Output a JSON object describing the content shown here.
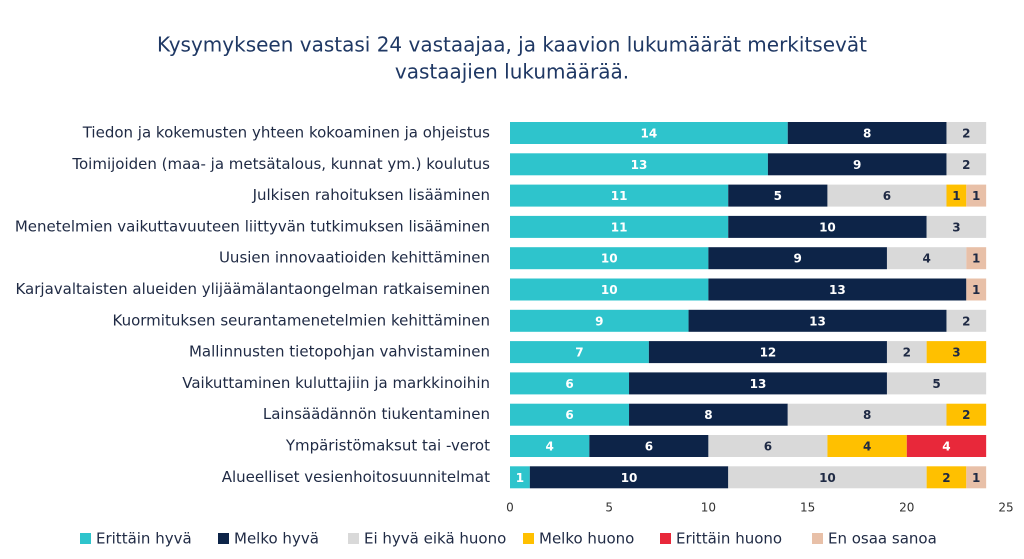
{
  "chart_data": {
    "type": "stacked-bar-horizontal",
    "title": [
      "Kysymykseen vastasi 24 vastaajaa, ja kaavion lukumäärät merkitsevät",
      "vastaajien lukumäärää."
    ],
    "categories": [
      "Tiedon ja kokemusten yhteen kokoaminen ja ohjeistus",
      "Toimijoiden (maa- ja metsätalous, kunnat ym.) koulutus",
      "Julkisen rahoituksen lisääminen",
      "Menetelmien vaikuttavuuteen liittyvän tutkimuksen lisääminen",
      "Uusien innovaatioiden kehittäminen",
      "Karjavaltaisten alueiden ylijäämälantaongelman ratkaiseminen",
      "Kuormituksen seurantamenetelmien kehittäminen",
      "Mallinnusten tietopohjan vahvistaminen",
      "Vaikuttaminen kuluttajiin ja markkinoihin",
      "Lainsäädännön tiukentaminen",
      "Ympäristömaksut tai -verot",
      "Alueelliset vesienhoitosuunnitelmat"
    ],
    "series": [
      {
        "name": "Erittäin hyvä",
        "color": "#2ec4cc",
        "values": [
          14,
          13,
          11,
          11,
          10,
          10,
          9,
          7,
          6,
          6,
          4,
          1
        ]
      },
      {
        "name": "Melko hyvä",
        "color": "#0d2448",
        "values": [
          8,
          9,
          5,
          10,
          9,
          13,
          13,
          12,
          13,
          8,
          6,
          10
        ]
      },
      {
        "name": "Ei hyvä eikä huono",
        "color": "#d9d9d9",
        "values": [
          2,
          2,
          6,
          3,
          4,
          null,
          2,
          2,
          5,
          8,
          6,
          10
        ]
      },
      {
        "name": "Melko huono",
        "color": "#ffc000",
        "values": [
          null,
          null,
          1,
          null,
          null,
          null,
          null,
          3,
          null,
          2,
          4,
          2
        ]
      },
      {
        "name": "Erittäin huono",
        "color": "#e8283a",
        "values": [
          null,
          null,
          null,
          null,
          null,
          null,
          null,
          null,
          null,
          null,
          4,
          null
        ]
      },
      {
        "name": "En osaa sanoa",
        "color": "#e8c0a8",
        "values": [
          null,
          null,
          1,
          null,
          1,
          1,
          null,
          null,
          null,
          null,
          null,
          1
        ]
      }
    ],
    "xlim": [
      0,
      25
    ],
    "xticks": [
      0,
      5,
      10,
      15,
      20,
      25
    ]
  }
}
